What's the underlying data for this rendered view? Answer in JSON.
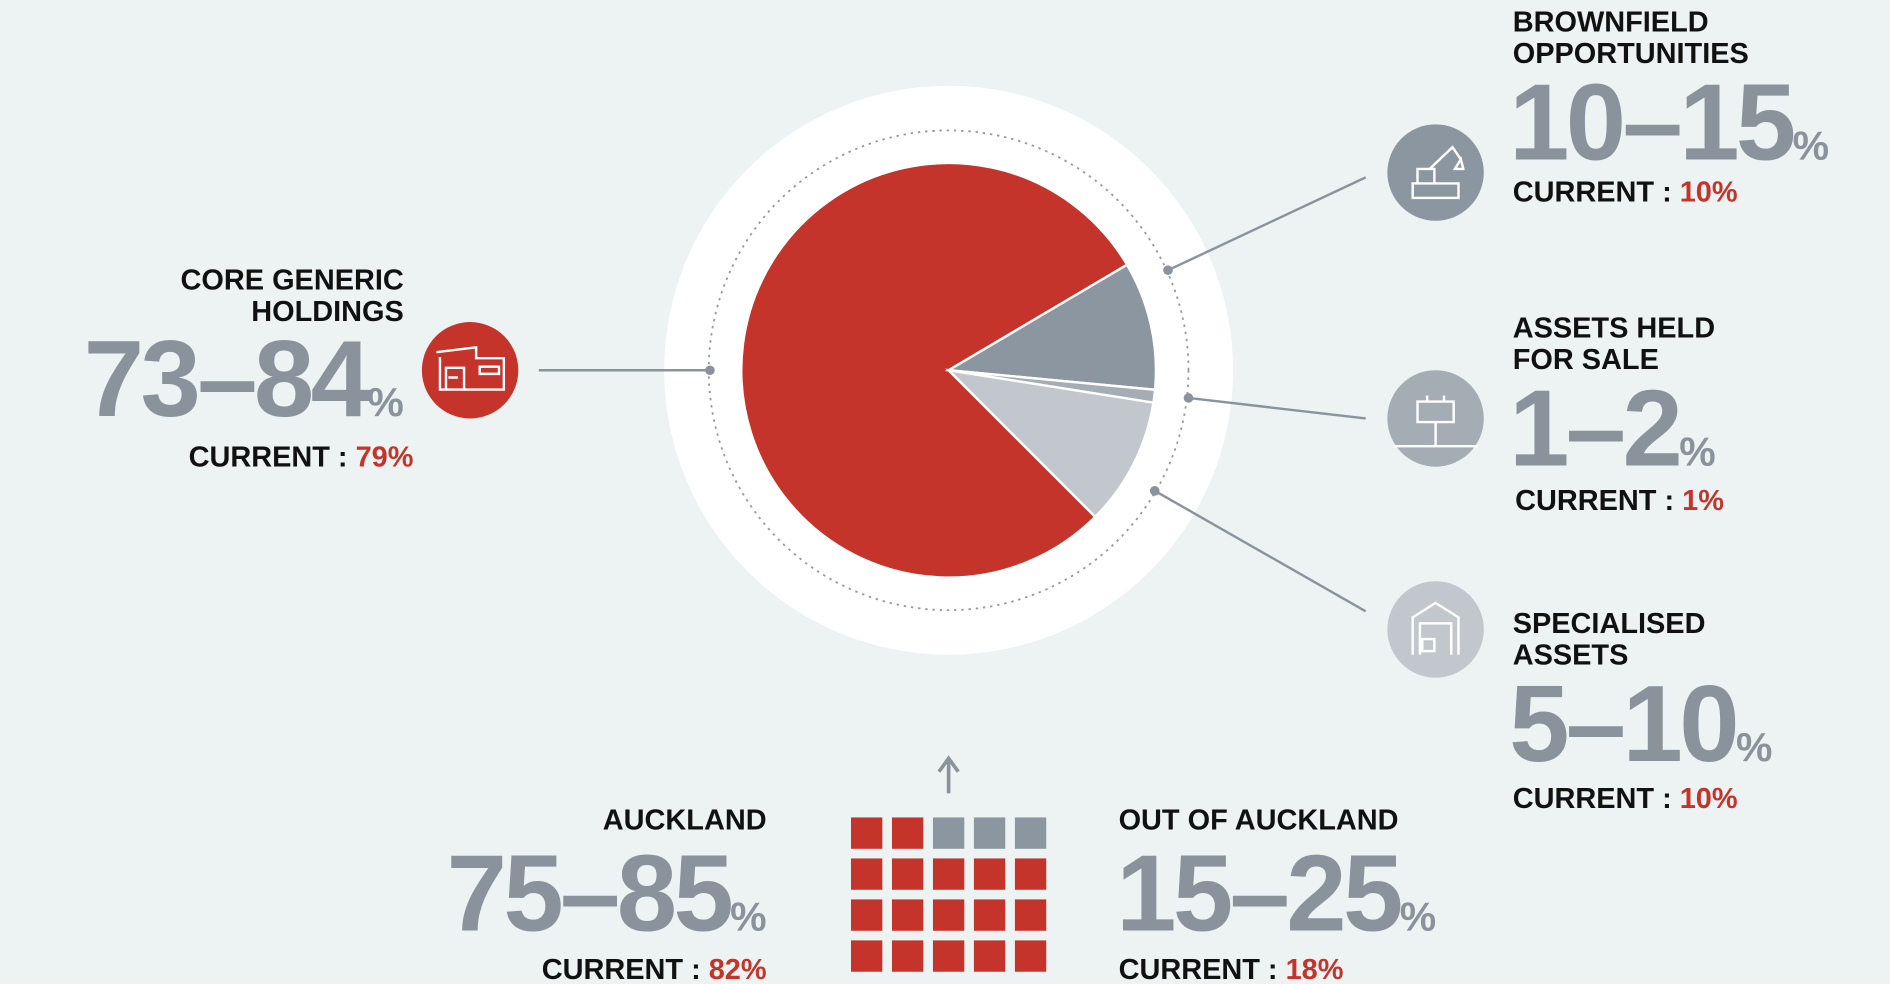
{
  "current_prefix": "CURRENT : ",
  "segments": [
    {
      "title": [
        "CORE GENERIC",
        "HOLDINGS"
      ],
      "range": "73–84",
      "unit": "%",
      "current": 79,
      "current_label": "79%",
      "color": "#c4342a"
    },
    {
      "title": [
        "BROWNFIELD",
        "OPPORTUNITIES"
      ],
      "range": "10–15",
      "unit": "%",
      "current": 10,
      "current_label": "10%",
      "color": "#8b96a0"
    },
    {
      "title": [
        "ASSETS HELD",
        "FOR SALE"
      ],
      "range": "1–2",
      "unit": "%",
      "current": 1,
      "current_label": "1%",
      "color": "#a4adb4"
    },
    {
      "title": [
        "SPECIALISED",
        "ASSETS"
      ],
      "range": "5–10",
      "unit": "%",
      "current": 10,
      "current_label": "10%",
      "color": "#c1c7cc"
    }
  ],
  "regions": [
    {
      "title": "AUCKLAND",
      "range": "75–85",
      "unit": "%",
      "current_label": "82%"
    },
    {
      "title": "OUT OF AUCKLAND",
      "range": "15–25",
      "unit": "%",
      "current_label": "18%"
    }
  ]
}
